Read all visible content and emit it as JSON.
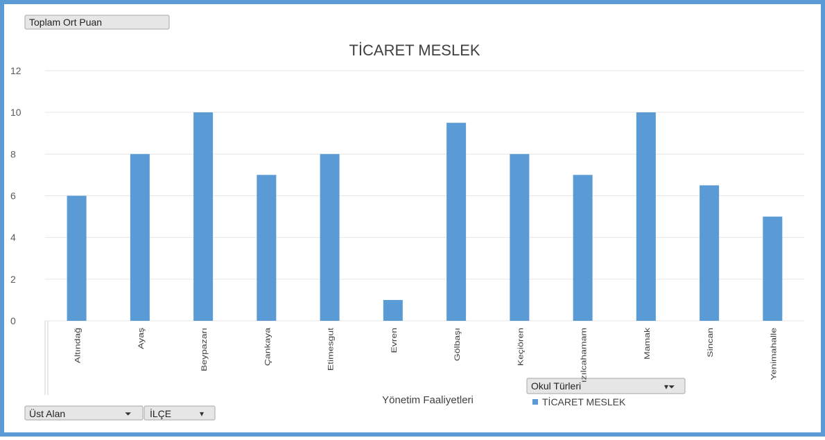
{
  "chart_data": {
    "type": "bar",
    "title": "TİCARET MESLEK",
    "categories": [
      "Altındağ",
      "Ayaş",
      "Beypazarı",
      "Çankaya",
      "Etimesgut",
      "Evren",
      "Gölbaşı",
      "Keçiören",
      "ızılcahamam",
      "Mamak",
      "Sincan",
      "Yenimahalle"
    ],
    "series": [
      {
        "name": "TİCARET MESLEK",
        "color": "#5b9bd5",
        "values": [
          6,
          8,
          10,
          7,
          8,
          1,
          9.5,
          8,
          7,
          10,
          6.5,
          5
        ]
      }
    ],
    "x_label": "Yönetim Faaliyetleri",
    "ylim": [
      0,
      12
    ],
    "yticks": [
      0,
      2,
      4,
      6,
      8,
      10,
      12
    ],
    "grid": true,
    "buttons": {
      "value_field": "Toplam Ort Puan",
      "filter_1": "Üst Alan",
      "filter_2": "İLÇE",
      "legend_field": "Okul Türleri"
    }
  }
}
